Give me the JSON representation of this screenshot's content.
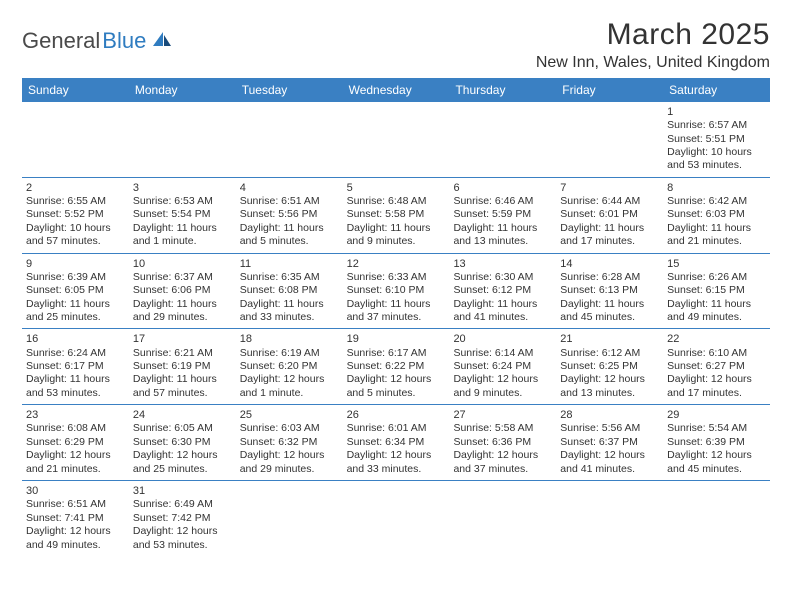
{
  "logo": {
    "textA": "General",
    "textB": "Blue"
  },
  "title": "March 2025",
  "location": "New Inn, Wales, United Kingdom",
  "colors": {
    "header_bg": "#3a80c3",
    "header_text": "#ffffff",
    "rule": "#3a80c3",
    "body_text": "#333333",
    "page_bg": "#ffffff"
  },
  "dayNames": [
    "Sunday",
    "Monday",
    "Tuesday",
    "Wednesday",
    "Thursday",
    "Friday",
    "Saturday"
  ],
  "weeks": [
    [
      null,
      null,
      null,
      null,
      null,
      null,
      {
        "d": "1",
        "rise": "Sunrise: 6:57 AM",
        "set": "Sunset: 5:51 PM",
        "dl": "Daylight: 10 hours and 53 minutes."
      }
    ],
    [
      {
        "d": "2",
        "rise": "Sunrise: 6:55 AM",
        "set": "Sunset: 5:52 PM",
        "dl": "Daylight: 10 hours and 57 minutes."
      },
      {
        "d": "3",
        "rise": "Sunrise: 6:53 AM",
        "set": "Sunset: 5:54 PM",
        "dl": "Daylight: 11 hours and 1 minute."
      },
      {
        "d": "4",
        "rise": "Sunrise: 6:51 AM",
        "set": "Sunset: 5:56 PM",
        "dl": "Daylight: 11 hours and 5 minutes."
      },
      {
        "d": "5",
        "rise": "Sunrise: 6:48 AM",
        "set": "Sunset: 5:58 PM",
        "dl": "Daylight: 11 hours and 9 minutes."
      },
      {
        "d": "6",
        "rise": "Sunrise: 6:46 AM",
        "set": "Sunset: 5:59 PM",
        "dl": "Daylight: 11 hours and 13 minutes."
      },
      {
        "d": "7",
        "rise": "Sunrise: 6:44 AM",
        "set": "Sunset: 6:01 PM",
        "dl": "Daylight: 11 hours and 17 minutes."
      },
      {
        "d": "8",
        "rise": "Sunrise: 6:42 AM",
        "set": "Sunset: 6:03 PM",
        "dl": "Daylight: 11 hours and 21 minutes."
      }
    ],
    [
      {
        "d": "9",
        "rise": "Sunrise: 6:39 AM",
        "set": "Sunset: 6:05 PM",
        "dl": "Daylight: 11 hours and 25 minutes."
      },
      {
        "d": "10",
        "rise": "Sunrise: 6:37 AM",
        "set": "Sunset: 6:06 PM",
        "dl": "Daylight: 11 hours and 29 minutes."
      },
      {
        "d": "11",
        "rise": "Sunrise: 6:35 AM",
        "set": "Sunset: 6:08 PM",
        "dl": "Daylight: 11 hours and 33 minutes."
      },
      {
        "d": "12",
        "rise": "Sunrise: 6:33 AM",
        "set": "Sunset: 6:10 PM",
        "dl": "Daylight: 11 hours and 37 minutes."
      },
      {
        "d": "13",
        "rise": "Sunrise: 6:30 AM",
        "set": "Sunset: 6:12 PM",
        "dl": "Daylight: 11 hours and 41 minutes."
      },
      {
        "d": "14",
        "rise": "Sunrise: 6:28 AM",
        "set": "Sunset: 6:13 PM",
        "dl": "Daylight: 11 hours and 45 minutes."
      },
      {
        "d": "15",
        "rise": "Sunrise: 6:26 AM",
        "set": "Sunset: 6:15 PM",
        "dl": "Daylight: 11 hours and 49 minutes."
      }
    ],
    [
      {
        "d": "16",
        "rise": "Sunrise: 6:24 AM",
        "set": "Sunset: 6:17 PM",
        "dl": "Daylight: 11 hours and 53 minutes."
      },
      {
        "d": "17",
        "rise": "Sunrise: 6:21 AM",
        "set": "Sunset: 6:19 PM",
        "dl": "Daylight: 11 hours and 57 minutes."
      },
      {
        "d": "18",
        "rise": "Sunrise: 6:19 AM",
        "set": "Sunset: 6:20 PM",
        "dl": "Daylight: 12 hours and 1 minute."
      },
      {
        "d": "19",
        "rise": "Sunrise: 6:17 AM",
        "set": "Sunset: 6:22 PM",
        "dl": "Daylight: 12 hours and 5 minutes."
      },
      {
        "d": "20",
        "rise": "Sunrise: 6:14 AM",
        "set": "Sunset: 6:24 PM",
        "dl": "Daylight: 12 hours and 9 minutes."
      },
      {
        "d": "21",
        "rise": "Sunrise: 6:12 AM",
        "set": "Sunset: 6:25 PM",
        "dl": "Daylight: 12 hours and 13 minutes."
      },
      {
        "d": "22",
        "rise": "Sunrise: 6:10 AM",
        "set": "Sunset: 6:27 PM",
        "dl": "Daylight: 12 hours and 17 minutes."
      }
    ],
    [
      {
        "d": "23",
        "rise": "Sunrise: 6:08 AM",
        "set": "Sunset: 6:29 PM",
        "dl": "Daylight: 12 hours and 21 minutes."
      },
      {
        "d": "24",
        "rise": "Sunrise: 6:05 AM",
        "set": "Sunset: 6:30 PM",
        "dl": "Daylight: 12 hours and 25 minutes."
      },
      {
        "d": "25",
        "rise": "Sunrise: 6:03 AM",
        "set": "Sunset: 6:32 PM",
        "dl": "Daylight: 12 hours and 29 minutes."
      },
      {
        "d": "26",
        "rise": "Sunrise: 6:01 AM",
        "set": "Sunset: 6:34 PM",
        "dl": "Daylight: 12 hours and 33 minutes."
      },
      {
        "d": "27",
        "rise": "Sunrise: 5:58 AM",
        "set": "Sunset: 6:36 PM",
        "dl": "Daylight: 12 hours and 37 minutes."
      },
      {
        "d": "28",
        "rise": "Sunrise: 5:56 AM",
        "set": "Sunset: 6:37 PM",
        "dl": "Daylight: 12 hours and 41 minutes."
      },
      {
        "d": "29",
        "rise": "Sunrise: 5:54 AM",
        "set": "Sunset: 6:39 PM",
        "dl": "Daylight: 12 hours and 45 minutes."
      }
    ],
    [
      {
        "d": "30",
        "rise": "Sunrise: 6:51 AM",
        "set": "Sunset: 7:41 PM",
        "dl": "Daylight: 12 hours and 49 minutes."
      },
      {
        "d": "31",
        "rise": "Sunrise: 6:49 AM",
        "set": "Sunset: 7:42 PM",
        "dl": "Daylight: 12 hours and 53 minutes."
      },
      null,
      null,
      null,
      null,
      null
    ]
  ]
}
